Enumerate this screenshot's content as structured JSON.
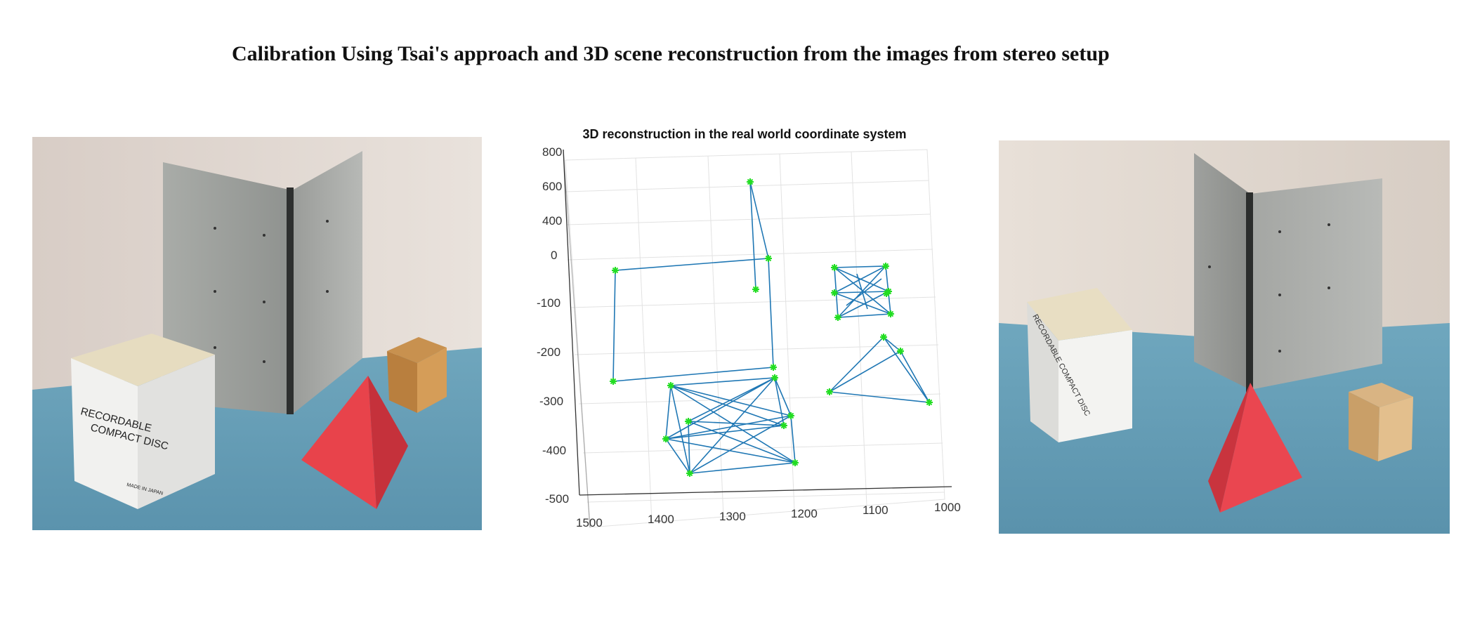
{
  "page": {
    "title": "Calibration Using Tsai's approach and 3D scene reconstruction from the images from stereo setup"
  },
  "photos": {
    "left": {
      "box_text_line1": "RECORDABLE",
      "box_text_line2": "COMPACT DISC",
      "box_small": "MADE IN JAPAN"
    },
    "right": {
      "box_text": "RECORDABLE COMPACT DISC"
    }
  },
  "plot": {
    "title": "3D reconstruction in the real world coordinate system",
    "z_ticks": [
      "800",
      "600",
      "400",
      "0",
      "-100",
      "-200",
      "-300",
      "-400",
      "-500"
    ],
    "x_ticks": [
      "1500",
      "1400",
      "1300",
      "1200",
      "1100",
      "1000"
    ],
    "line_color": "#1f77b4",
    "marker_color": "#22dd22"
  }
}
